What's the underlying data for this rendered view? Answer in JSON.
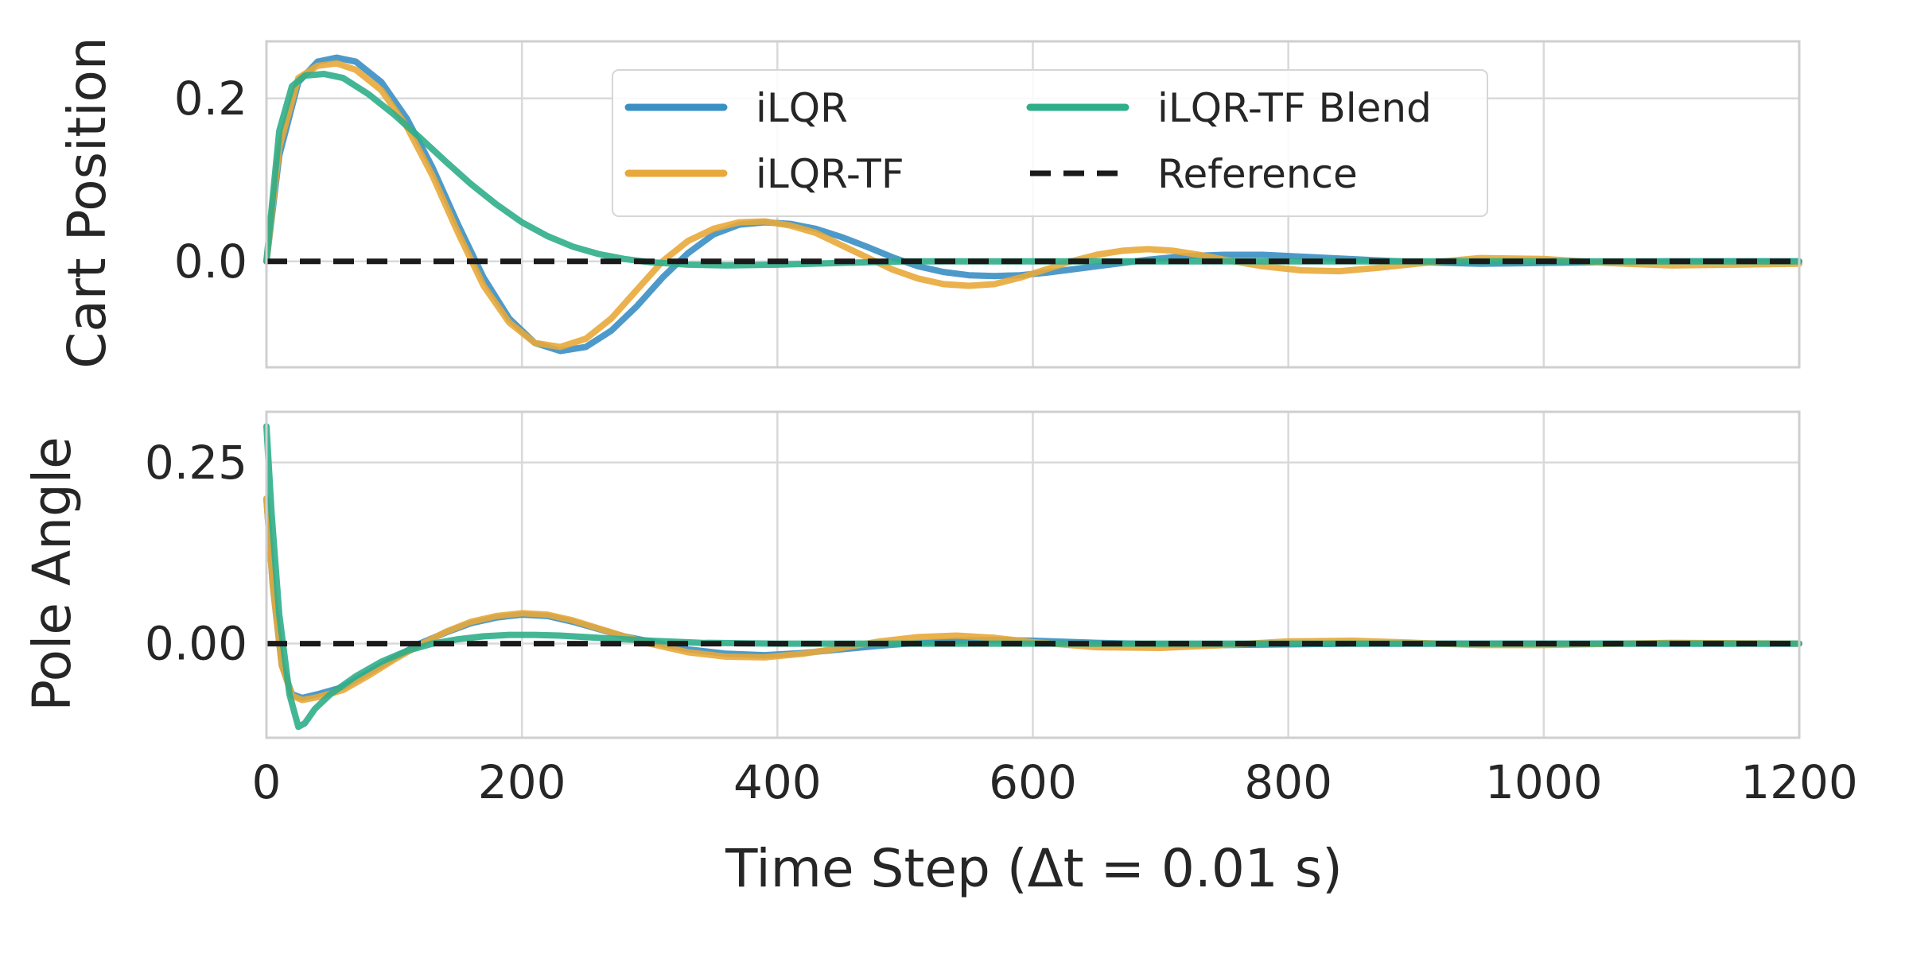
{
  "colors": {
    "iLQR": "#3a8fc4",
    "iLQR-TF": "#e8a83a",
    "iLQR-TF Blend": "#2fae8a",
    "Reference": "#1a1a1a",
    "grid": "#d9d9d9",
    "frame": "#cfcfcf"
  },
  "chart_data": [
    {
      "type": "line",
      "ylabel": "Cart Position",
      "xlim": [
        0,
        1200
      ],
      "ylim": [
        -0.13,
        0.27
      ],
      "xticks": [
        0,
        200,
        400,
        600,
        800,
        1000,
        1200
      ],
      "yticks": [
        0.0,
        0.2
      ],
      "ytick_labels": [
        "0.0",
        "0.2"
      ],
      "grid": true,
      "legend": {
        "position": "upper-center",
        "columns": 2,
        "entries": [
          "iLQR",
          "iLQR-TF",
          "iLQR-TF Blend",
          "Reference"
        ]
      },
      "series": [
        {
          "name": "iLQR",
          "style": "solid",
          "x": [
            0,
            10,
            25,
            40,
            55,
            70,
            90,
            110,
            130,
            150,
            170,
            190,
            210,
            230,
            250,
            270,
            290,
            310,
            330,
            350,
            370,
            390,
            410,
            430,
            450,
            470,
            490,
            510,
            530,
            550,
            570,
            590,
            610,
            630,
            650,
            670,
            690,
            710,
            730,
            750,
            780,
            820,
            860,
            900,
            950,
            1000,
            1050,
            1100,
            1150,
            1200
          ],
          "y": [
            0.0,
            0.13,
            0.22,
            0.245,
            0.25,
            0.245,
            0.22,
            0.175,
            0.115,
            0.045,
            -0.02,
            -0.07,
            -0.1,
            -0.11,
            -0.105,
            -0.085,
            -0.055,
            -0.02,
            0.01,
            0.033,
            0.045,
            0.048,
            0.046,
            0.04,
            0.03,
            0.018,
            0.005,
            -0.006,
            -0.013,
            -0.017,
            -0.018,
            -0.017,
            -0.014,
            -0.01,
            -0.006,
            -0.002,
            0.002,
            0.005,
            0.007,
            0.008,
            0.008,
            0.005,
            0.002,
            -0.001,
            -0.003,
            -0.002,
            -0.001,
            0.0,
            0.0,
            0.0
          ]
        },
        {
          "name": "iLQR-TF",
          "style": "solid",
          "x": [
            0,
            10,
            25,
            40,
            55,
            70,
            90,
            110,
            130,
            150,
            170,
            190,
            210,
            230,
            250,
            270,
            290,
            310,
            330,
            350,
            370,
            390,
            410,
            430,
            450,
            470,
            490,
            510,
            530,
            550,
            570,
            590,
            610,
            630,
            650,
            670,
            690,
            710,
            730,
            750,
            780,
            810,
            840,
            870,
            900,
            950,
            1000,
            1050,
            1100,
            1150,
            1200
          ],
          "y": [
            0.0,
            0.14,
            0.225,
            0.24,
            0.243,
            0.235,
            0.21,
            0.165,
            0.105,
            0.035,
            -0.03,
            -0.075,
            -0.1,
            -0.105,
            -0.095,
            -0.07,
            -0.035,
            0.0,
            0.025,
            0.04,
            0.048,
            0.049,
            0.044,
            0.035,
            0.02,
            0.005,
            -0.01,
            -0.021,
            -0.028,
            -0.03,
            -0.028,
            -0.02,
            -0.01,
            0.0,
            0.008,
            0.013,
            0.015,
            0.013,
            0.008,
            0.002,
            -0.006,
            -0.011,
            -0.012,
            -0.008,
            -0.003,
            0.004,
            0.003,
            -0.002,
            -0.005,
            -0.004,
            -0.003
          ]
        },
        {
          "name": "iLQR-TF Blend",
          "style": "solid",
          "x": [
            0,
            10,
            20,
            30,
            45,
            60,
            80,
            100,
            120,
            140,
            160,
            180,
            200,
            220,
            240,
            260,
            280,
            300,
            330,
            360,
            400,
            450,
            500,
            550,
            600,
            700,
            800,
            900,
            1000,
            1100,
            1200
          ],
          "y": [
            0.0,
            0.16,
            0.215,
            0.228,
            0.23,
            0.225,
            0.205,
            0.18,
            0.152,
            0.123,
            0.095,
            0.07,
            0.048,
            0.031,
            0.018,
            0.009,
            0.003,
            -0.001,
            -0.004,
            -0.005,
            -0.004,
            -0.002,
            0.0,
            0.0,
            0.0,
            0.0,
            0.0,
            0.0,
            0.0,
            0.0,
            0.0
          ]
        },
        {
          "name": "Reference",
          "style": "dashed",
          "x": [
            0,
            1200
          ],
          "y": [
            0.0,
            0.0
          ]
        }
      ]
    },
    {
      "type": "line",
      "ylabel": "Pole Angle",
      "xlabel": "Time Step (Δt = 0.01 s)",
      "xlim": [
        0,
        1200
      ],
      "ylim": [
        -0.13,
        0.32
      ],
      "xticks": [
        0,
        200,
        400,
        600,
        800,
        1000,
        1200
      ],
      "xtick_labels": [
        "0",
        "200",
        "400",
        "600",
        "800",
        "1000",
        "1200"
      ],
      "yticks": [
        0.0,
        0.25
      ],
      "ytick_labels": [
        "0.00",
        "0.25"
      ],
      "grid": true,
      "series": [
        {
          "name": "iLQR",
          "style": "solid",
          "x": [
            0,
            5,
            12,
            20,
            28,
            40,
            60,
            80,
            100,
            120,
            140,
            160,
            180,
            200,
            220,
            240,
            260,
            280,
            300,
            330,
            360,
            390,
            420,
            450,
            480,
            510,
            540,
            570,
            600,
            650,
            700,
            750,
            800,
            850,
            900,
            1000,
            1100,
            1200
          ],
          "y": [
            0.2,
            0.08,
            -0.03,
            -0.07,
            -0.075,
            -0.07,
            -0.06,
            -0.04,
            -0.02,
            0.0,
            0.015,
            0.028,
            0.036,
            0.04,
            0.038,
            0.03,
            0.02,
            0.01,
            0.003,
            -0.008,
            -0.014,
            -0.016,
            -0.013,
            -0.008,
            -0.003,
            0.001,
            0.004,
            0.005,
            0.004,
            0.001,
            -0.001,
            -0.002,
            -0.001,
            0.0,
            0.0,
            0.0,
            0.0,
            0.0
          ]
        },
        {
          "name": "iLQR-TF",
          "style": "solid",
          "x": [
            0,
            5,
            12,
            20,
            28,
            40,
            60,
            80,
            100,
            120,
            140,
            160,
            180,
            200,
            220,
            240,
            260,
            280,
            300,
            330,
            360,
            390,
            420,
            450,
            480,
            510,
            540,
            570,
            600,
            650,
            700,
            750,
            800,
            850,
            900,
            950,
            1000,
            1100,
            1200
          ],
          "y": [
            0.2,
            0.08,
            -0.03,
            -0.072,
            -0.078,
            -0.074,
            -0.064,
            -0.044,
            -0.022,
            -0.002,
            0.016,
            0.03,
            0.038,
            0.042,
            0.04,
            0.032,
            0.021,
            0.01,
            0.0,
            -0.012,
            -0.018,
            -0.019,
            -0.014,
            -0.006,
            0.003,
            0.009,
            0.011,
            0.008,
            0.002,
            -0.005,
            -0.006,
            -0.002,
            0.003,
            0.004,
            0.001,
            -0.002,
            -0.002,
            0.001,
            0.0
          ]
        },
        {
          "name": "iLQR-TF Blend",
          "style": "solid",
          "x": [
            0,
            4,
            10,
            18,
            25,
            30,
            38,
            50,
            70,
            90,
            110,
            130,
            150,
            170,
            190,
            210,
            230,
            250,
            270,
            300,
            340,
            400,
            500,
            600,
            700,
            800,
            900,
            1000,
            1100,
            1200
          ],
          "y": [
            0.3,
            0.18,
            0.04,
            -0.07,
            -0.115,
            -0.11,
            -0.09,
            -0.07,
            -0.045,
            -0.025,
            -0.01,
            0.0,
            0.006,
            0.01,
            0.012,
            0.012,
            0.011,
            0.009,
            0.007,
            0.004,
            0.001,
            0.0,
            0.0,
            0.0,
            0.0,
            0.0,
            0.0,
            0.0,
            0.0,
            0.0
          ]
        },
        {
          "name": "Reference",
          "style": "dashed",
          "x": [
            0,
            1200
          ],
          "y": [
            0.0,
            0.0
          ]
        }
      ]
    }
  ]
}
